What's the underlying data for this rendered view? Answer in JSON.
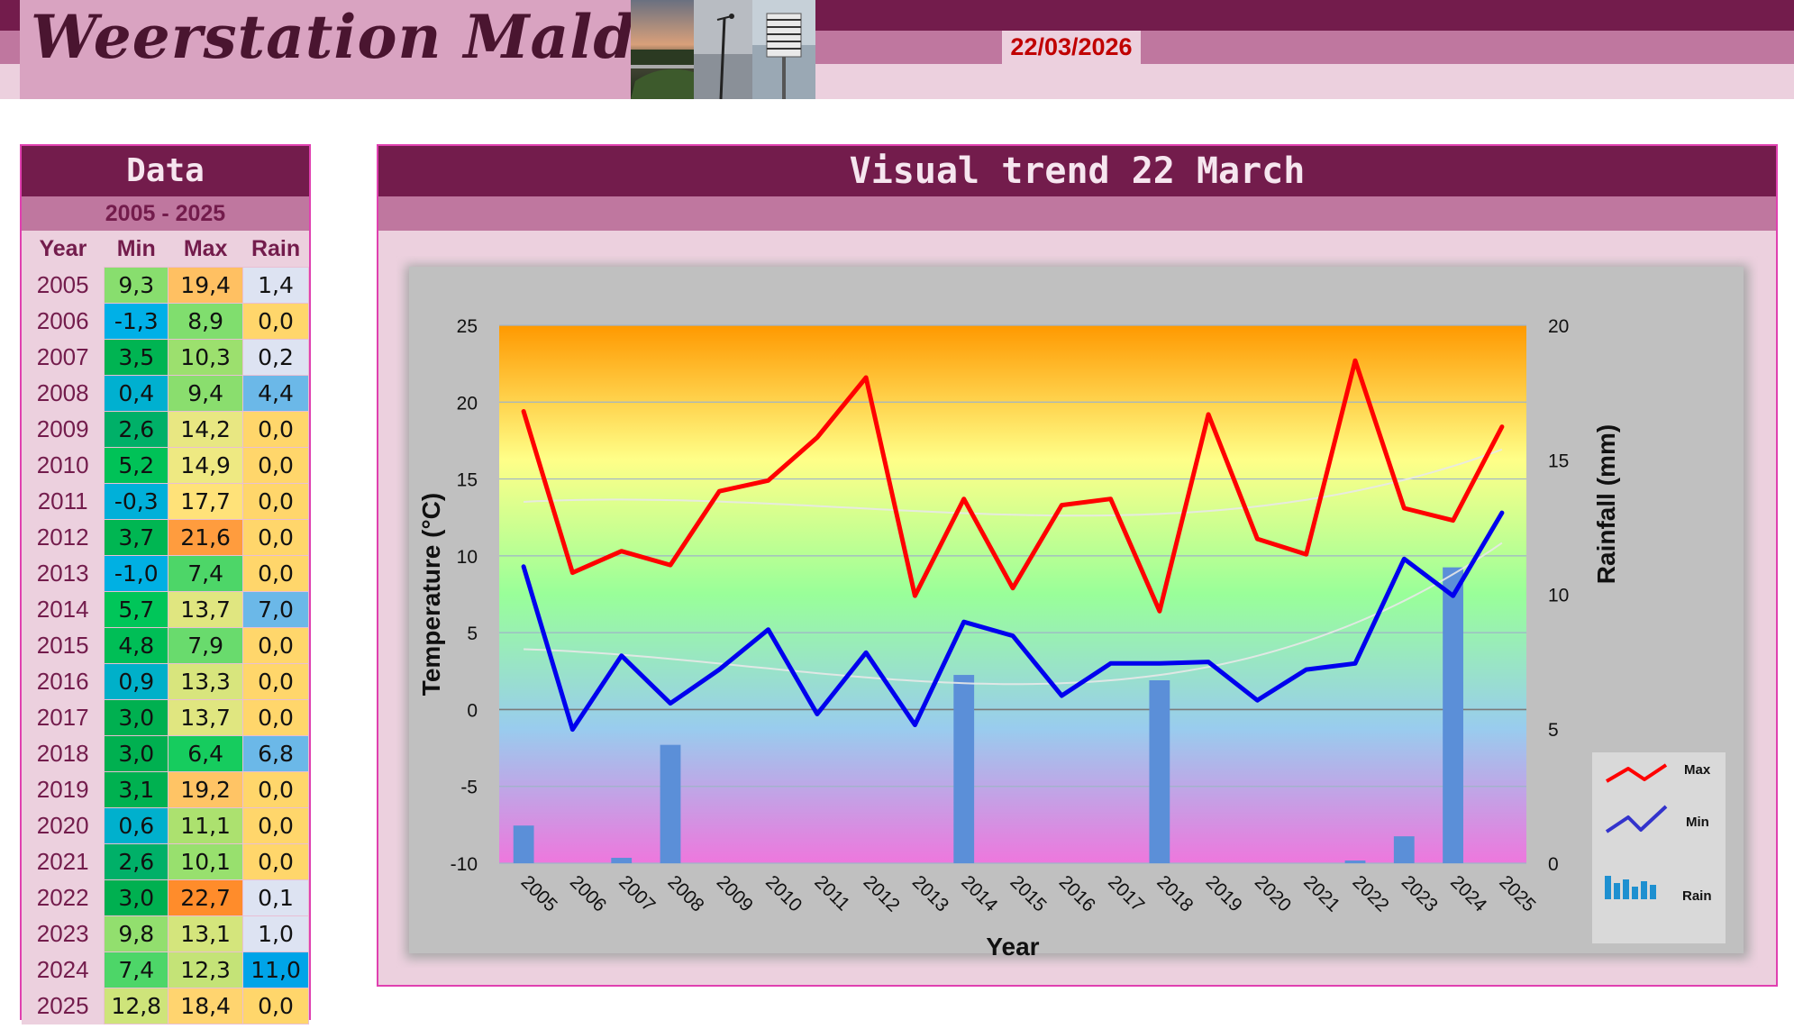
{
  "header": {
    "site_title": "Weerstation Malderen",
    "date": "22/03/2026"
  },
  "data_panel": {
    "title": "Data",
    "range": "2005 - 2025",
    "columns": [
      "Year",
      "Min",
      "Max",
      "Rain"
    ],
    "rows": [
      {
        "year": "2005",
        "min": "9,3",
        "max": "19,4",
        "rain": "1,4"
      },
      {
        "year": "2006",
        "min": "-1,3",
        "max": "8,9",
        "rain": "0,0"
      },
      {
        "year": "2007",
        "min": "3,5",
        "max": "10,3",
        "rain": "0,2"
      },
      {
        "year": "2008",
        "min": "0,4",
        "max": "9,4",
        "rain": "4,4"
      },
      {
        "year": "2009",
        "min": "2,6",
        "max": "14,2",
        "rain": "0,0"
      },
      {
        "year": "2010",
        "min": "5,2",
        "max": "14,9",
        "rain": "0,0"
      },
      {
        "year": "2011",
        "min": "-0,3",
        "max": "17,7",
        "rain": "0,0"
      },
      {
        "year": "2012",
        "min": "3,7",
        "max": "21,6",
        "rain": "0,0"
      },
      {
        "year": "2013",
        "min": "-1,0",
        "max": "7,4",
        "rain": "0,0"
      },
      {
        "year": "2014",
        "min": "5,7",
        "max": "13,7",
        "rain": "7,0"
      },
      {
        "year": "2015",
        "min": "4,8",
        "max": "7,9",
        "rain": "0,0"
      },
      {
        "year": "2016",
        "min": "0,9",
        "max": "13,3",
        "rain": "0,0"
      },
      {
        "year": "2017",
        "min": "3,0",
        "max": "13,7",
        "rain": "0,0"
      },
      {
        "year": "2018",
        "min": "3,0",
        "max": "6,4",
        "rain": "6,8"
      },
      {
        "year": "2019",
        "min": "3,1",
        "max": "19,2",
        "rain": "0,0"
      },
      {
        "year": "2020",
        "min": "0,6",
        "max": "11,1",
        "rain": "0,0"
      },
      {
        "year": "2021",
        "min": "2,6",
        "max": "10,1",
        "rain": "0,0"
      },
      {
        "year": "2022",
        "min": "3,0",
        "max": "22,7",
        "rain": "0,1"
      },
      {
        "year": "2023",
        "min": "9,8",
        "max": "13,1",
        "rain": "1,0"
      },
      {
        "year": "2024",
        "min": "7,4",
        "max": "12,3",
        "rain": "11,0"
      },
      {
        "year": "2025",
        "min": "12,8",
        "max": "18,4",
        "rain": "0,0"
      }
    ]
  },
  "chart_panel": {
    "title": "Visual trend 22 March"
  },
  "chart_data": {
    "type": "line",
    "x": [
      "2005",
      "2006",
      "2007",
      "2008",
      "2009",
      "2010",
      "2011",
      "2012",
      "2013",
      "2014",
      "2015",
      "2016",
      "2017",
      "2018",
      "2019",
      "2020",
      "2021",
      "2022",
      "2023",
      "2024",
      "2025"
    ],
    "series": [
      {
        "name": "Max",
        "type": "line",
        "axis": "left",
        "color": "#ff0000",
        "values": [
          19.4,
          8.9,
          10.3,
          9.4,
          14.2,
          14.9,
          17.7,
          21.6,
          7.4,
          13.7,
          7.9,
          13.3,
          13.7,
          6.4,
          19.2,
          11.1,
          10.1,
          22.7,
          13.1,
          12.3,
          18.4
        ]
      },
      {
        "name": "Min",
        "type": "line",
        "axis": "left",
        "color": "#0000ee",
        "values": [
          9.3,
          -1.3,
          3.5,
          0.4,
          2.6,
          5.2,
          -0.3,
          3.7,
          -1.0,
          5.7,
          4.8,
          0.9,
          3.0,
          3.0,
          3.1,
          0.6,
          2.6,
          3.0,
          9.8,
          7.4,
          12.8
        ]
      },
      {
        "name": "Rain",
        "type": "bar",
        "axis": "right",
        "color": "#5b8fd8",
        "values": [
          1.4,
          0.0,
          0.2,
          4.4,
          0.0,
          0.0,
          0.0,
          0.0,
          0.0,
          7.0,
          0.0,
          0.0,
          0.0,
          6.8,
          0.0,
          0.0,
          0.0,
          0.1,
          1.0,
          11.0,
          0.0
        ]
      }
    ],
    "xlabel": "Year",
    "ylabel": "Temperature (°C)",
    "y2label": "Rainfall (mm)",
    "ylim": [
      -10,
      25
    ],
    "y2lim": [
      0,
      20
    ],
    "yticks": [
      "25",
      "20",
      "15",
      "10",
      "5",
      "0",
      "-5",
      "-10"
    ],
    "y2ticks": [
      "20",
      "15",
      "10",
      "5",
      "0"
    ],
    "grid": true,
    "trendlines": true,
    "legend_position": "bottom-right",
    "background_gradient": [
      "#ff9900",
      "#ffff88",
      "#99ff99",
      "#99ccee",
      "#ee77dd"
    ],
    "panel_color": "#c0c0c0"
  }
}
